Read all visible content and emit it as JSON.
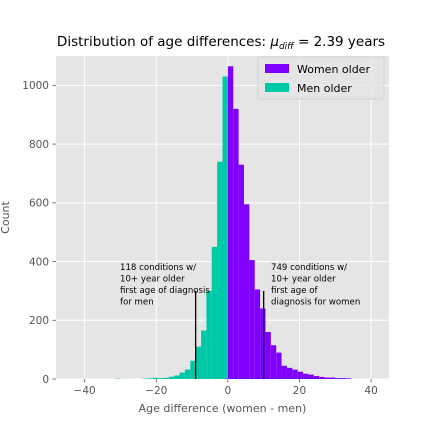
{
  "chart_data": {
    "type": "bar",
    "title_prefix": "Distribution of age differences: ",
    "title_symbol": "μ",
    "title_subscript": "diff",
    "title_suffix": " = 2.39 years",
    "xlabel": "Age difference (women - men)",
    "ylabel": "Count",
    "xlim": [
      -48,
      45
    ],
    "ylim": [
      0,
      1100
    ],
    "xticks": [
      -40,
      -20,
      0,
      20,
      40
    ],
    "xtick_labels": [
      "−40",
      "−20",
      "0",
      "20",
      "40"
    ],
    "yticks": [
      0,
      200,
      400,
      600,
      800,
      1000
    ],
    "ytick_labels": [
      "0",
      "200",
      "400",
      "600",
      "800",
      "1000"
    ],
    "grid": true,
    "legend_position": "top-right",
    "bin_width": 1.5,
    "series": [
      {
        "name": "Women older",
        "color": "#7f00ff",
        "bins": [
          {
            "x0": 0,
            "count": 1065
          },
          {
            "x0": 1.5,
            "count": 920
          },
          {
            "x0": 3,
            "count": 730
          },
          {
            "x0": 4.5,
            "count": 595
          },
          {
            "x0": 6,
            "count": 405
          },
          {
            "x0": 7.5,
            "count": 305
          },
          {
            "x0": 9,
            "count": 240
          },
          {
            "x0": 10.5,
            "count": 160
          },
          {
            "x0": 12,
            "count": 115
          },
          {
            "x0": 13.5,
            "count": 90
          },
          {
            "x0": 15,
            "count": 45
          },
          {
            "x0": 16.5,
            "count": 38
          },
          {
            "x0": 18,
            "count": 32
          },
          {
            "x0": 19.5,
            "count": 25
          },
          {
            "x0": 21,
            "count": 18
          },
          {
            "x0": 22.5,
            "count": 15
          },
          {
            "x0": 24,
            "count": 10
          },
          {
            "x0": 25.5,
            "count": 7
          },
          {
            "x0": 27,
            "count": 5
          },
          {
            "x0": 28.5,
            "count": 5
          },
          {
            "x0": 30,
            "count": 3
          },
          {
            "x0": 31.5,
            "count": 3
          },
          {
            "x0": 33,
            "count": 2
          }
        ]
      },
      {
        "name": "Men older",
        "color": "#00c9a7",
        "bins": [
          {
            "x0": -1.5,
            "count": 1030
          },
          {
            "x0": -3,
            "count": 740
          },
          {
            "x0": -4.5,
            "count": 450
          },
          {
            "x0": -6,
            "count": 300
          },
          {
            "x0": -7.5,
            "count": 165
          },
          {
            "x0": -9,
            "count": 110
          },
          {
            "x0": -10.5,
            "count": 62
          },
          {
            "x0": -12,
            "count": 32
          },
          {
            "x0": -13.5,
            "count": 22
          },
          {
            "x0": -15,
            "count": 12
          },
          {
            "x0": -16.5,
            "count": 8
          },
          {
            "x0": -18,
            "count": 4
          },
          {
            "x0": -19.5,
            "count": 3
          },
          {
            "x0": -21,
            "count": 4
          },
          {
            "x0": -22.5,
            "count": 2
          },
          {
            "x0": -24,
            "count": 1
          },
          {
            "x0": -31.5,
            "count": 1
          }
        ]
      }
    ],
    "annotations": [
      {
        "line_x": -9,
        "line_y_top": 300,
        "lines": [
          "118 conditions w/",
          "10+ year older",
          "first age of diagnosis",
          "for men"
        ]
      },
      {
        "line_x": 10,
        "line_y_top": 300,
        "lines": [
          "749 conditions w/",
          "10+ year older",
          "first age of",
          "diagnosis for women"
        ]
      }
    ]
  }
}
